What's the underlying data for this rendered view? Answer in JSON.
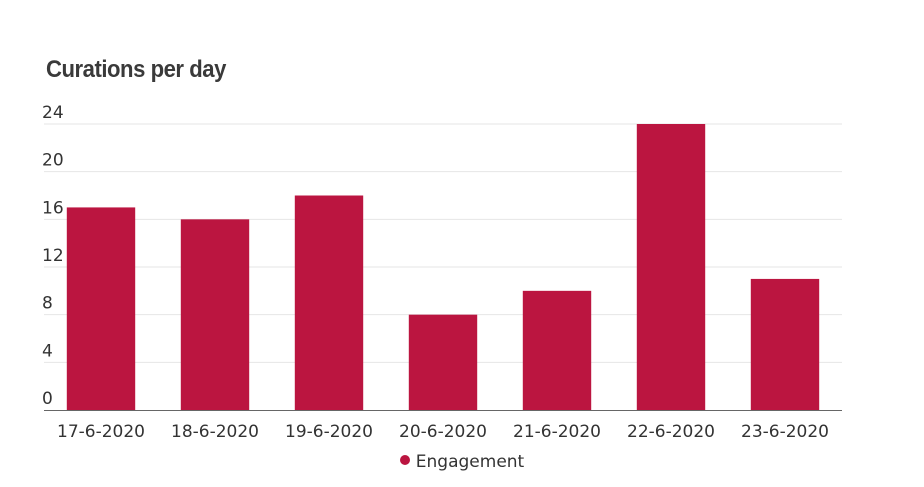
{
  "chart_data": {
    "type": "bar",
    "title": "Curations per day",
    "xlabel": "",
    "ylabel": "",
    "categories": [
      "17-6-2020",
      "18-6-2020",
      "19-6-2020",
      "20-6-2020",
      "21-6-2020",
      "22-6-2020",
      "23-6-2020"
    ],
    "series": [
      {
        "name": "Engagement",
        "values": [
          17,
          16,
          18,
          8,
          10,
          24,
          11
        ]
      }
    ],
    "ylim": [
      0,
      24
    ],
    "yticks": [
      "0",
      "4",
      "8",
      "12",
      "16",
      "20",
      "24"
    ],
    "grid": true,
    "legend": "bottom-center",
    "colors": {
      "bar": "#bb1540",
      "grid": "#e6e6e6",
      "axis": "#666666"
    }
  }
}
